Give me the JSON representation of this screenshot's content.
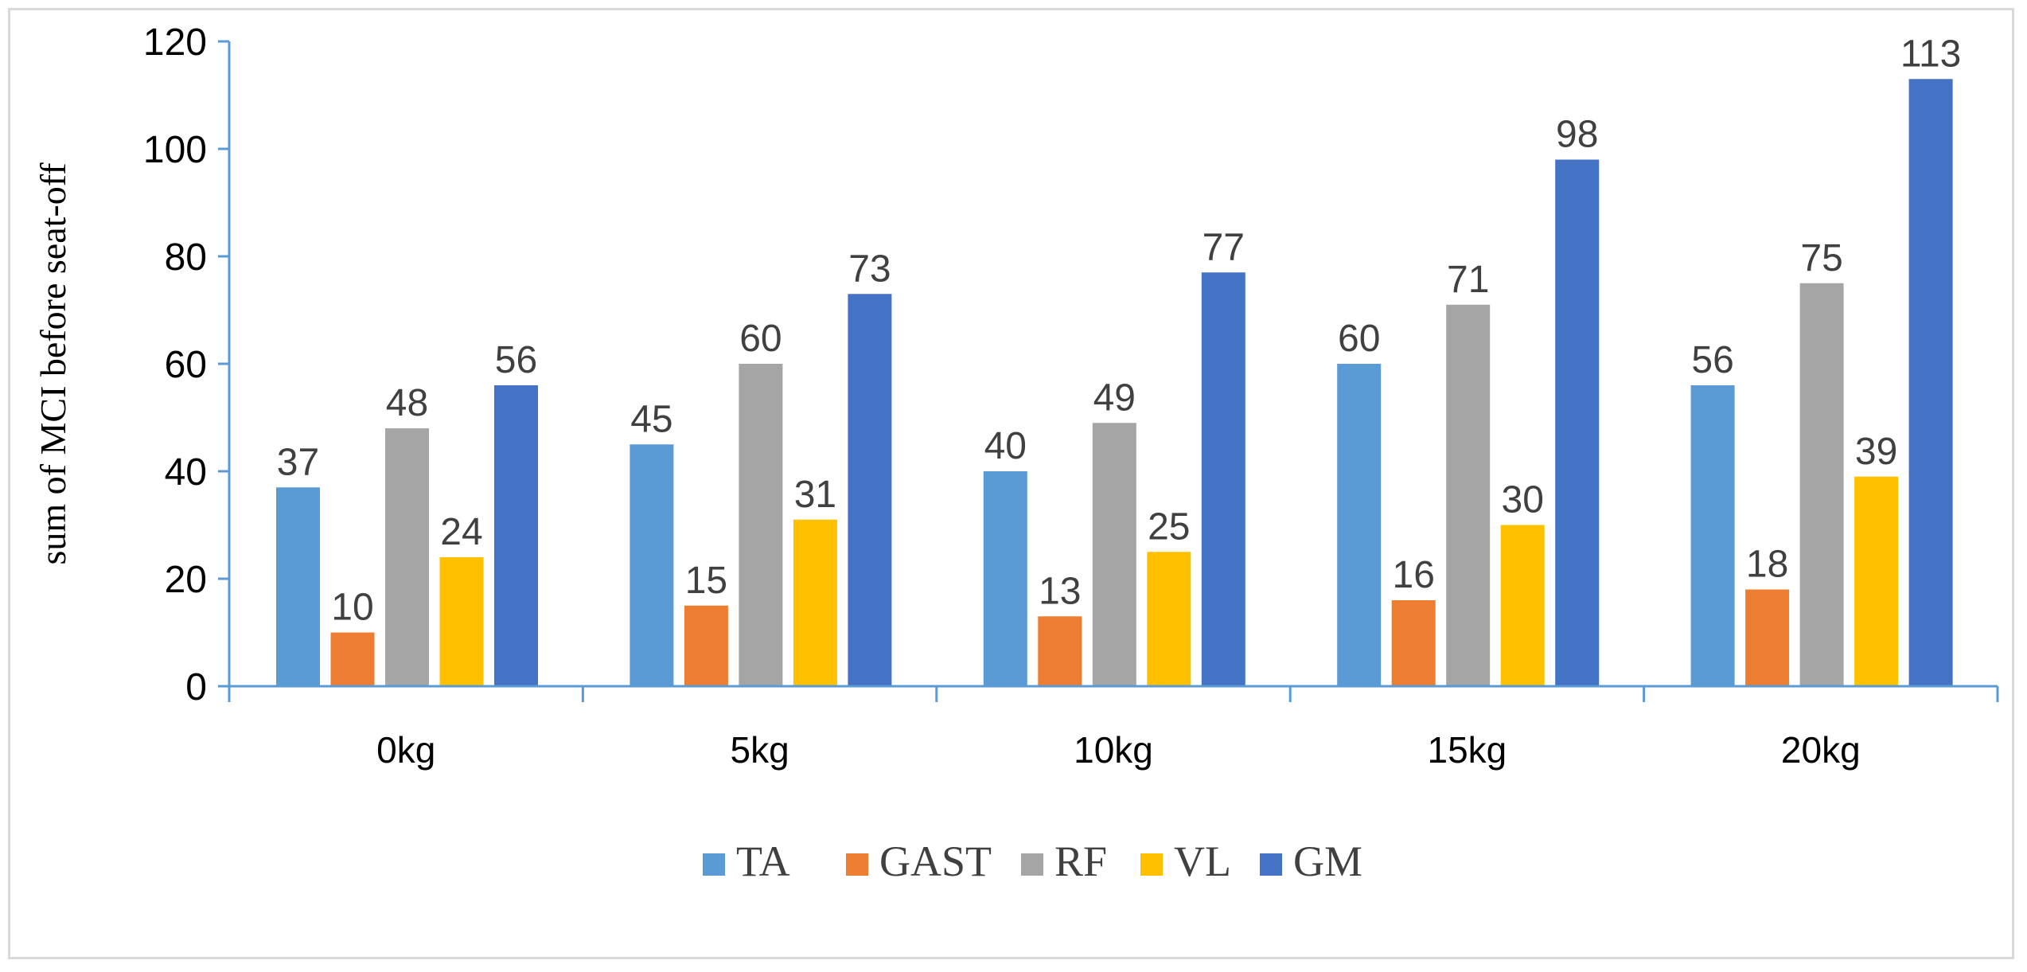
{
  "chart_data": {
    "type": "bar",
    "title": "",
    "xlabel": "",
    "ylabel": "sum of MCI before seat-off",
    "categories": [
      "0kg",
      "5kg",
      "10kg",
      "15kg",
      "20kg"
    ],
    "ylim": [
      0,
      120
    ],
    "yticks": [
      0,
      20,
      40,
      60,
      80,
      100,
      120
    ],
    "grid": false,
    "legend_position": "bottom",
    "data_labels": true,
    "series": [
      {
        "name": "TA",
        "color": "#5b9bd5",
        "values": [
          37,
          45,
          40,
          60,
          56
        ]
      },
      {
        "name": "GAST",
        "color": "#ed7d31",
        "values": [
          10,
          15,
          13,
          16,
          18
        ]
      },
      {
        "name": "RF",
        "color": "#a5a5a5",
        "values": [
          48,
          60,
          49,
          71,
          75
        ]
      },
      {
        "name": "VL",
        "color": "#ffc000",
        "values": [
          24,
          31,
          25,
          30,
          39
        ]
      },
      {
        "name": "GM",
        "color": "#4472c4",
        "values": [
          56,
          73,
          77,
          98,
          113
        ]
      }
    ],
    "axis_color": "#5b9bd5"
  }
}
